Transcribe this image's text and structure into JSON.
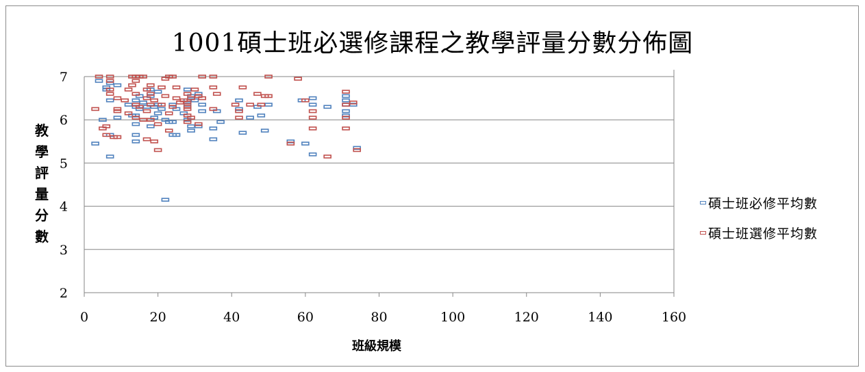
{
  "colors": {
    "required": "#4f81bd",
    "elective": "#c0504d",
    "grid": "#868686",
    "axis": "#868686"
  },
  "chart_data": {
    "type": "scatter",
    "title": "1001碩士班必選修課程之教學評量分數分佈圖",
    "xlabel": "班級規模",
    "ylabel": "教學評量分數",
    "xlim": [
      0,
      160
    ],
    "ylim": [
      2,
      7
    ],
    "x_ticks": [
      "0",
      "20",
      "40",
      "60",
      "80",
      "100",
      "120",
      "140",
      "160"
    ],
    "y_ticks": [
      "2",
      "3",
      "4",
      "5",
      "6",
      "7"
    ],
    "grid": "horizontal",
    "legend_position": "right",
    "series": [
      {
        "name": "碩士班必修平均數",
        "color": "#4f81bd",
        "points": [
          [
            3,
            5.45
          ],
          [
            4,
            6.9
          ],
          [
            5,
            6.0
          ],
          [
            6,
            6.75
          ],
          [
            6,
            6.7
          ],
          [
            7,
            6.85
          ],
          [
            7,
            6.45
          ],
          [
            7,
            5.65
          ],
          [
            7,
            5.15
          ],
          [
            9,
            6.8
          ],
          [
            9,
            6.05
          ],
          [
            12,
            6.35
          ],
          [
            13,
            6.1
          ],
          [
            14,
            6.45
          ],
          [
            14,
            6.3
          ],
          [
            14,
            6.1
          ],
          [
            14,
            5.9
          ],
          [
            14,
            5.65
          ],
          [
            14,
            5.5
          ],
          [
            15,
            6.55
          ],
          [
            15,
            6.25
          ],
          [
            16,
            6.4
          ],
          [
            17,
            6.3
          ],
          [
            18,
            6.7
          ],
          [
            18,
            6.55
          ],
          [
            18,
            5.85
          ],
          [
            19,
            6.3
          ],
          [
            19,
            6.05
          ],
          [
            20,
            6.65
          ],
          [
            20,
            6.35
          ],
          [
            20,
            6.15
          ],
          [
            21,
            6.25
          ],
          [
            22,
            6.0
          ],
          [
            22,
            4.15
          ],
          [
            23,
            5.95
          ],
          [
            24,
            6.35
          ],
          [
            24,
            5.65
          ],
          [
            24,
            5.95
          ],
          [
            25,
            6.25
          ],
          [
            25,
            5.65
          ],
          [
            27,
            6.15
          ],
          [
            28,
            6.7
          ],
          [
            28,
            6.45
          ],
          [
            28,
            6.35
          ],
          [
            28,
            6.0
          ],
          [
            29,
            6.55
          ],
          [
            29,
            5.85
          ],
          [
            29,
            5.75
          ],
          [
            30,
            6.45
          ],
          [
            31,
            6.6
          ],
          [
            31,
            5.85
          ],
          [
            32,
            6.35
          ],
          [
            32,
            6.2
          ],
          [
            35,
            5.8
          ],
          [
            35,
            5.55
          ],
          [
            36,
            6.2
          ],
          [
            37,
            5.95
          ],
          [
            42,
            6.45
          ],
          [
            42,
            6.25
          ],
          [
            43,
            5.7
          ],
          [
            45,
            6.05
          ],
          [
            47,
            6.3
          ],
          [
            48,
            6.1
          ],
          [
            49,
            5.75
          ],
          [
            50,
            6.35
          ],
          [
            56,
            5.5
          ],
          [
            59,
            6.45
          ],
          [
            60,
            5.45
          ],
          [
            62,
            6.5
          ],
          [
            62,
            6.35
          ],
          [
            62,
            5.2
          ],
          [
            66,
            6.3
          ],
          [
            71,
            6.55
          ],
          [
            71,
            6.45
          ],
          [
            71,
            6.35
          ],
          [
            71,
            6.2
          ],
          [
            71,
            6.1
          ],
          [
            73,
            6.35
          ],
          [
            74,
            5.35
          ]
        ]
      },
      {
        "name": "碩士班選修平均數",
        "color": "#c0504d",
        "points": [
          [
            3,
            6.25
          ],
          [
            4,
            7.0
          ],
          [
            5,
            5.8
          ],
          [
            6,
            5.85
          ],
          [
            6,
            5.65
          ],
          [
            7,
            7.0
          ],
          [
            7,
            6.9
          ],
          [
            7,
            6.7
          ],
          [
            7,
            6.6
          ],
          [
            8,
            5.6
          ],
          [
            9,
            6.5
          ],
          [
            9,
            6.25
          ],
          [
            9,
            6.2
          ],
          [
            9,
            5.6
          ],
          [
            11,
            6.45
          ],
          [
            12,
            6.7
          ],
          [
            12,
            6.15
          ],
          [
            13,
            7.0
          ],
          [
            13,
            6.8
          ],
          [
            14,
            7.0
          ],
          [
            14,
            6.9
          ],
          [
            14,
            6.6
          ],
          [
            14,
            6.35
          ],
          [
            14,
            6.05
          ],
          [
            15,
            7.0
          ],
          [
            15,
            6.3
          ],
          [
            16,
            7.0
          ],
          [
            16,
            6.0
          ],
          [
            17,
            6.7
          ],
          [
            17,
            6.5
          ],
          [
            17,
            6.2
          ],
          [
            17,
            5.55
          ],
          [
            18,
            6.8
          ],
          [
            18,
            6.6
          ],
          [
            18,
            6.35
          ],
          [
            18,
            6.0
          ],
          [
            19,
            6.45
          ],
          [
            19,
            5.5
          ],
          [
            20,
            5.9
          ],
          [
            20,
            5.3
          ],
          [
            21,
            6.75
          ],
          [
            21,
            6.35
          ],
          [
            22,
            6.95
          ],
          [
            22,
            6.55
          ],
          [
            23,
            7.0
          ],
          [
            23,
            6.15
          ],
          [
            23,
            5.75
          ],
          [
            24,
            7.0
          ],
          [
            24,
            6.3
          ],
          [
            25,
            6.75
          ],
          [
            25,
            6.5
          ],
          [
            26,
            6.4
          ],
          [
            27,
            6.45
          ],
          [
            28,
            6.6
          ],
          [
            28,
            6.4
          ],
          [
            28,
            6.3
          ],
          [
            28,
            6.25
          ],
          [
            28,
            6.1
          ],
          [
            28,
            5.95
          ],
          [
            29,
            6.5
          ],
          [
            29,
            6.05
          ],
          [
            30,
            6.7
          ],
          [
            31,
            6.55
          ],
          [
            31,
            5.9
          ],
          [
            32,
            7.0
          ],
          [
            32,
            6.5
          ],
          [
            35,
            7.0
          ],
          [
            35,
            6.75
          ],
          [
            35,
            6.25
          ],
          [
            36,
            6.6
          ],
          [
            41,
            6.35
          ],
          [
            42,
            6.2
          ],
          [
            42,
            6.05
          ],
          [
            43,
            6.75
          ],
          [
            45,
            6.35
          ],
          [
            47,
            6.6
          ],
          [
            48,
            6.35
          ],
          [
            49,
            6.55
          ],
          [
            50,
            7.0
          ],
          [
            50,
            6.55
          ],
          [
            56,
            5.45
          ],
          [
            58,
            6.95
          ],
          [
            60,
            6.45
          ],
          [
            62,
            6.2
          ],
          [
            62,
            6.05
          ],
          [
            62,
            5.8
          ],
          [
            66,
            5.15
          ],
          [
            71,
            6.65
          ],
          [
            71,
            6.35
          ],
          [
            71,
            6.05
          ],
          [
            71,
            5.8
          ],
          [
            73,
            6.4
          ],
          [
            74,
            5.3
          ]
        ]
      }
    ]
  }
}
